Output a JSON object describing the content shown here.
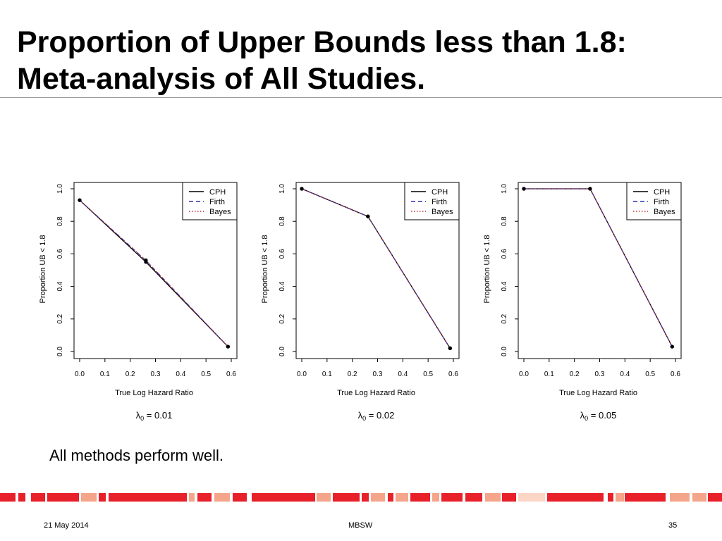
{
  "slide": {
    "title_lines": [
      "Proportion of Upper Bounds less than 1.8:",
      "Meta-analysis of All Studies."
    ],
    "caption": "All methods perform well."
  },
  "footer": {
    "date": "21 May 2014",
    "center": "MBSW",
    "page": "35",
    "colors": [
      "#e8202a",
      "#f4a58a",
      "#fbd5c6"
    ]
  },
  "chart_data": [
    {
      "type": "line",
      "xlabel": "True Log Hazard Ratio",
      "ylabel": "Proportion UB < 1.8",
      "xlim": [
        0.0,
        0.6
      ],
      "ylim": [
        0.0,
        1.0
      ],
      "xticks": [
        "0.0",
        "0.1",
        "0.2",
        "0.3",
        "0.4",
        "0.5",
        "0.6"
      ],
      "yticks": [
        "0.0",
        "0.2",
        "0.4",
        "0.6",
        "0.8",
        "1.0"
      ],
      "legend_position": "top-right",
      "lambda_symbol": "λ",
      "lambda_sub": "0",
      "lambda_value": "= 0.01",
      "x": [
        0.0,
        0.262,
        0.587
      ],
      "series": [
        {
          "name": "CPH",
          "values": [
            0.93,
            0.55,
            0.03
          ],
          "color": "#000000",
          "style": "solid"
        },
        {
          "name": "Firth",
          "values": [
            0.93,
            0.56,
            0.03
          ],
          "color": "#3030b0",
          "style": "dashed"
        },
        {
          "name": "Bayes",
          "values": [
            0.93,
            0.56,
            0.03
          ],
          "color": "#c03030",
          "style": "dotted"
        }
      ]
    },
    {
      "type": "line",
      "xlabel": "True Log Hazard Ratio",
      "ylabel": "Proportion UB < 1.8",
      "xlim": [
        0.0,
        0.6
      ],
      "ylim": [
        0.0,
        1.0
      ],
      "xticks": [
        "0.0",
        "0.1",
        "0.2",
        "0.3",
        "0.4",
        "0.5",
        "0.6"
      ],
      "yticks": [
        "0.0",
        "0.2",
        "0.4",
        "0.6",
        "0.8",
        "1.0"
      ],
      "legend_position": "top-right",
      "lambda_symbol": "λ",
      "lambda_sub": "0",
      "lambda_value": "= 0.02",
      "x": [
        0.0,
        0.262,
        0.587
      ],
      "series": [
        {
          "name": "CPH",
          "values": [
            1.0,
            0.83,
            0.02
          ],
          "color": "#000000",
          "style": "solid"
        },
        {
          "name": "Firth",
          "values": [
            1.0,
            0.83,
            0.02
          ],
          "color": "#3030b0",
          "style": "dashed"
        },
        {
          "name": "Bayes",
          "values": [
            1.0,
            0.83,
            0.02
          ],
          "color": "#c03030",
          "style": "dotted"
        }
      ]
    },
    {
      "type": "line",
      "xlabel": "True Log Hazard Ratio",
      "ylabel": "Proportion UB < 1.8",
      "xlim": [
        0.0,
        0.6
      ],
      "ylim": [
        0.0,
        1.0
      ],
      "xticks": [
        "0.0",
        "0.1",
        "0.2",
        "0.3",
        "0.4",
        "0.5",
        "0.6"
      ],
      "yticks": [
        "0.0",
        "0.2",
        "0.4",
        "0.6",
        "0.8",
        "1.0"
      ],
      "legend_position": "top-right",
      "lambda_symbol": "λ",
      "lambda_sub": "0",
      "lambda_value": "= 0.05",
      "x": [
        0.0,
        0.262,
        0.587
      ],
      "series": [
        {
          "name": "CPH",
          "values": [
            1.0,
            1.0,
            0.03
          ],
          "color": "#000000",
          "style": "solid"
        },
        {
          "name": "Firth",
          "values": [
            1.0,
            1.0,
            0.03
          ],
          "color": "#3030b0",
          "style": "dashed"
        },
        {
          "name": "Bayes",
          "values": [
            1.0,
            1.0,
            0.03
          ],
          "color": "#c03030",
          "style": "dotted"
        }
      ]
    }
  ]
}
